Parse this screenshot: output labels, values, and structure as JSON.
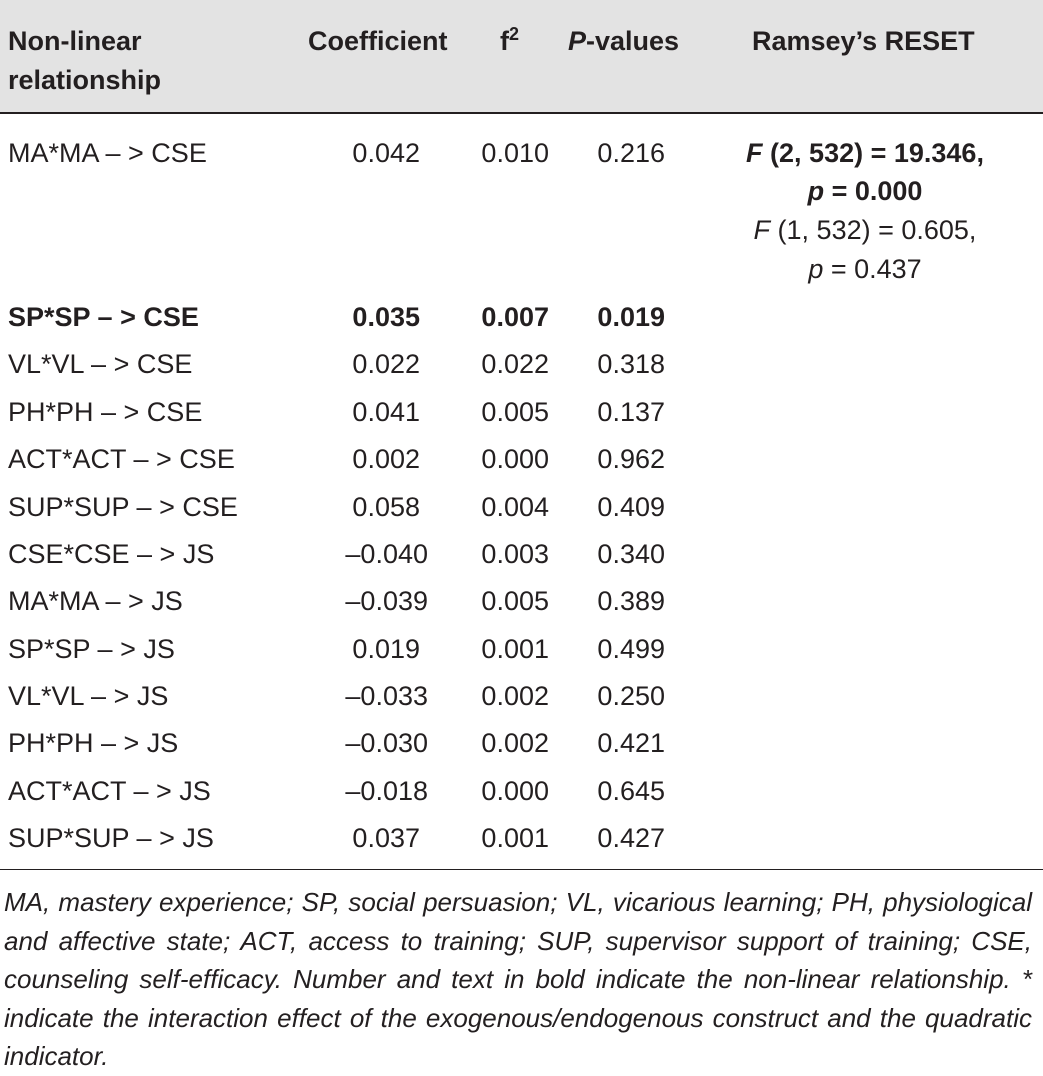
{
  "table": {
    "headers": {
      "relationship_line1": "Non-linear",
      "relationship_line2": "relationship",
      "coefficient": "Coefficient",
      "f2_base": "f",
      "f2_sup": "2",
      "pvalues_italic": "P",
      "pvalues_rest": "-values",
      "reset": "Ramsey’s RESET"
    },
    "rows": [
      {
        "rel": "MA*MA – >  CSE",
        "coef": "0.042",
        "f2": "0.010",
        "p": "0.216",
        "bold": false
      },
      {
        "rel": "SP*SP – >  CSE",
        "coef": "0.035",
        "f2": "0.007",
        "p": "0.019",
        "bold": true
      },
      {
        "rel": "VL*VL – >  CSE",
        "coef": "0.022",
        "f2": "0.022",
        "p": "0.318",
        "bold": false
      },
      {
        "rel": "PH*PH – >  CSE",
        "coef": "0.041",
        "f2": "0.005",
        "p": "0.137",
        "bold": false
      },
      {
        "rel": "ACT*ACT – >  CSE",
        "coef": "0.002",
        "f2": "0.000",
        "p": "0.962",
        "bold": false
      },
      {
        "rel": "SUP*SUP – >  CSE",
        "coef": "0.058",
        "f2": "0.004",
        "p": "0.409",
        "bold": false
      },
      {
        "rel": "CSE*CSE – >  JS",
        "coef": "–0.040",
        "f2": "0.003",
        "p": "0.340",
        "bold": false
      },
      {
        "rel": "MA*MA – >  JS",
        "coef": "–0.039",
        "f2": "0.005",
        "p": "0.389",
        "bold": false
      },
      {
        "rel": "SP*SP – >  JS",
        "coef": "0.019",
        "f2": "0.001",
        "p": "0.499",
        "bold": false
      },
      {
        "rel": "VL*VL – >  JS",
        "coef": "–0.033",
        "f2": "0.002",
        "p": "0.250",
        "bold": false
      },
      {
        "rel": "PH*PH – >  JS",
        "coef": "–0.030",
        "f2": "0.002",
        "p": "0.421",
        "bold": false
      },
      {
        "rel": "ACT*ACT – >  JS",
        "coef": "–0.018",
        "f2": "0.000",
        "p": "0.645",
        "bold": false
      },
      {
        "rel": "SUP*SUP – >  JS",
        "coef": "0.037",
        "f2": "0.001",
        "p": "0.427",
        "bold": false
      }
    ],
    "reset": {
      "bold_line1_F": "F",
      "bold_line1_rest": " (2, 532) = 19.346,",
      "bold_line2_p": "p",
      "bold_line2_rest": " = 0.000",
      "line3_F": "F",
      "line3_rest": " (1, 532) = 0.605,",
      "line4_p": "p",
      "line4_rest": " = 0.437"
    }
  },
  "footnote": "MA, mastery experience; SP, social persuasion; VL, vicarious learning; PH, physiological and affective state; ACT, access to training; SUP, supervisor support of training; CSE, counseling self-efficacy. Number and text in bold indicate the non-linear relationship. * indicate the interaction effect of the exogenous/endogenous construct and the quadratic indicator.",
  "colors": {
    "header_bg": "#e3e3e3",
    "text": "#231f20",
    "rule": "#231f20"
  }
}
